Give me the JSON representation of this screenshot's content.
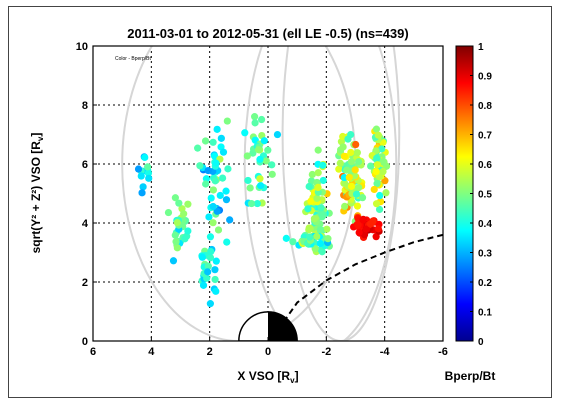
{
  "chart_data": {
    "type": "scatter",
    "title": "2011-03-01 to 2012-05-31 (ell LE -0.5) (ns=439)",
    "annotation": "Color - Bperp/Bt",
    "xlabel": "X VSO [R",
    "xlabel_sub": "v",
    "xlabel_end": "]",
    "ylabel": "sqrt(Y² + Z²) VSO [R",
    "ylabel_sub": "v",
    "ylabel_end": "]",
    "xlim": [
      6,
      -6
    ],
    "ylim": [
      0,
      10
    ],
    "xticks": [
      "6",
      "4",
      "2",
      "0",
      "-2",
      "-4",
      "-6"
    ],
    "yticks": [
      "0",
      "2",
      "4",
      "6",
      "8",
      "10"
    ],
    "grid": true,
    "x_reversed": true,
    "colorbar": {
      "label": "Bperp/Bt",
      "range": [
        0,
        1
      ],
      "ticks": [
        "0",
        "0.1",
        "0.2",
        "0.3",
        "0.4",
        "0.5",
        "0.6",
        "0.7",
        "0.8",
        "0.9",
        "1"
      ],
      "colormap": "jet"
    },
    "n_points": 439,
    "point_clusters": [
      {
        "x_center": 4.2,
        "y_center": 5.8,
        "x_spread": 0.4,
        "y_spread": 1.0,
        "count": 12,
        "c_mean": 0.35,
        "c_spread": 0.15
      },
      {
        "x_center": 3.0,
        "y_center": 3.8,
        "x_spread": 0.5,
        "y_spread": 1.3,
        "count": 30,
        "c_mean": 0.45,
        "c_spread": 0.15
      },
      {
        "x_center": 2.0,
        "y_center": 2.5,
        "x_spread": 0.5,
        "y_spread": 1.5,
        "count": 25,
        "c_mean": 0.4,
        "c_spread": 0.15
      },
      {
        "x_center": 1.8,
        "y_center": 5.5,
        "x_spread": 0.8,
        "y_spread": 2.5,
        "count": 45,
        "c_mean": 0.4,
        "c_spread": 0.2
      },
      {
        "x_center": 0.3,
        "y_center": 6.0,
        "x_spread": 0.8,
        "y_spread": 2.5,
        "count": 35,
        "c_mean": 0.45,
        "c_spread": 0.2
      },
      {
        "x_center": -1.7,
        "y_center": 4.5,
        "x_spread": 0.5,
        "y_spread": 2.5,
        "count": 70,
        "c_mean": 0.5,
        "c_spread": 0.2
      },
      {
        "x_center": -2.8,
        "y_center": 5.5,
        "x_spread": 0.6,
        "y_spread": 2.2,
        "count": 80,
        "c_mean": 0.55,
        "c_spread": 0.25
      },
      {
        "x_center": -3.8,
        "y_center": 6.0,
        "x_spread": 0.4,
        "y_spread": 2.0,
        "count": 60,
        "c_mean": 0.55,
        "c_spread": 0.25
      },
      {
        "x_center": -3.4,
        "y_center": 3.9,
        "x_spread": 0.6,
        "y_spread": 0.5,
        "count": 45,
        "c_mean": 0.88,
        "c_spread": 0.08
      },
      {
        "x_center": -1.5,
        "y_center": 3.4,
        "x_spread": 1.0,
        "y_spread": 0.4,
        "count": 37,
        "c_mean": 0.45,
        "c_spread": 0.2
      }
    ],
    "bow_shock_model": [
      [
        -6,
        3.6
      ],
      [
        -5,
        3.35
      ],
      [
        -4,
        3.0
      ],
      [
        -3,
        2.6
      ],
      [
        -2,
        2.05
      ],
      [
        -1,
        1.3
      ],
      [
        -0.5,
        0.6
      ],
      [
        0.2,
        0.0
      ]
    ],
    "orbit_ellipses": [
      {
        "x_center": 1.0,
        "y_center": 6.0,
        "x_radius": 4.0,
        "y_radius": 6.0
      },
      {
        "x_center": -2.5,
        "y_center": 7.0,
        "x_radius": 2.0,
        "y_radius": 7.0
      },
      {
        "x_center": -1.8,
        "y_center": 6.0,
        "x_radius": 2.6,
        "y_radius": 6.3
      }
    ],
    "planet_radius": 1.0
  }
}
